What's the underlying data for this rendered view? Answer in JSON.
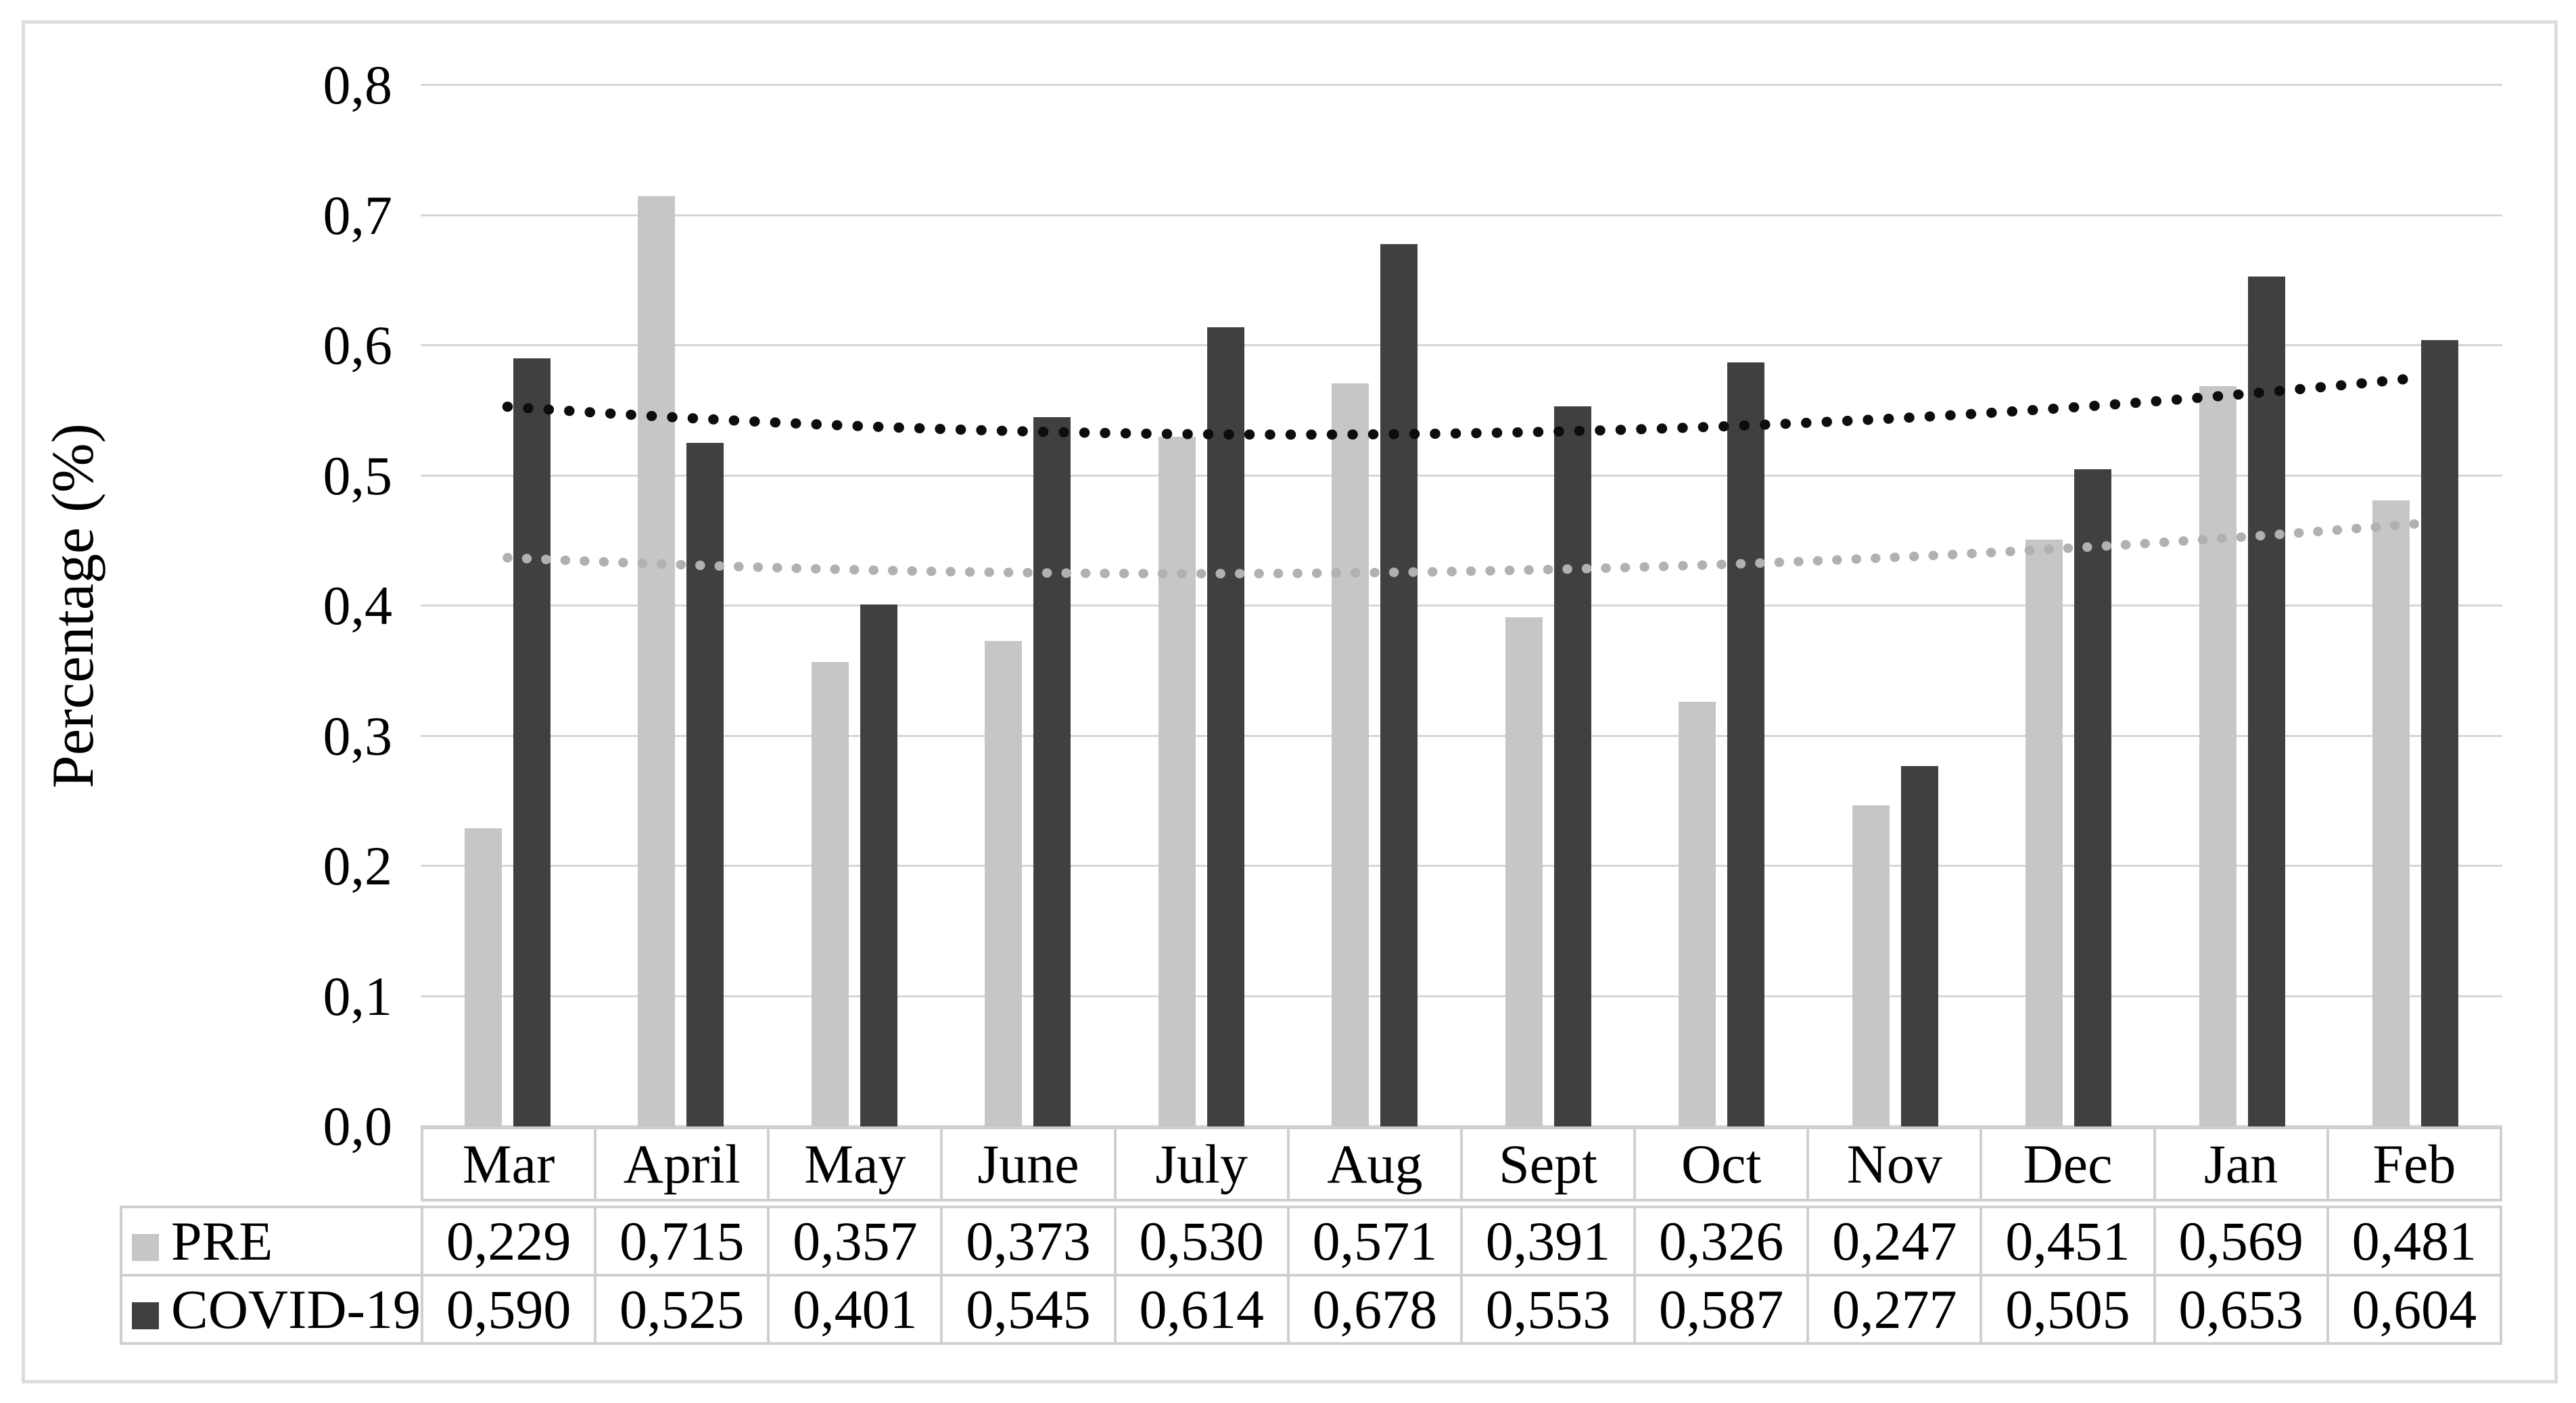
{
  "chart_data": {
    "type": "bar",
    "title": "",
    "xlabel": "",
    "ylabel": "Percentage (%)",
    "ylim": [
      0,
      0.8
    ],
    "ytick_step": 0.1,
    "ytick_labels": [
      "0,0",
      "0,1",
      "0,2",
      "0,3",
      "0,4",
      "0,5",
      "0,6",
      "0,7",
      "0,8"
    ],
    "decimal_separator": ",",
    "grid": true,
    "legend_position": "table-row-labels",
    "categories": [
      "Mar",
      "April",
      "May",
      "June",
      "July",
      "Aug",
      "Sept",
      "Oct",
      "Nov",
      "Dec",
      "Jan",
      "Feb"
    ],
    "series": [
      {
        "name": "PRE",
        "color": "#c6c6c6",
        "values": [
          0.229,
          0.715,
          0.357,
          0.373,
          0.53,
          0.571,
          0.391,
          0.326,
          0.247,
          0.451,
          0.569,
          0.481
        ],
        "values_display": [
          "0,229",
          "0,715",
          "0,357",
          "0,373",
          "0,530",
          "0,571",
          "0,391",
          "0,326",
          "0,247",
          "0,451",
          "0,569",
          "0,481"
        ]
      },
      {
        "name": "COVID-19",
        "color": "#404040",
        "values": [
          0.59,
          0.525,
          0.401,
          0.545,
          0.614,
          0.678,
          0.553,
          0.587,
          0.277,
          0.505,
          0.653,
          0.604
        ],
        "values_display": [
          "0,590",
          "0,525",
          "0,401",
          "0,545",
          "0,614",
          "0,678",
          "0,553",
          "0,587",
          "0,277",
          "0,505",
          "0,653",
          "0,604"
        ]
      }
    ],
    "trendlines": [
      {
        "for_series": "PRE",
        "style": "dotted",
        "color": "#b1b1b1",
        "dot_size": 14,
        "start": 0.437,
        "mid": 0.4265,
        "end": 0.463
      },
      {
        "for_series": "COVID-19",
        "style": "dotted",
        "color": "#0d0d0d",
        "dot_size": 15,
        "start": 0.553,
        "mid": 0.5325,
        "end": 0.575
      }
    ]
  },
  "colors": {
    "background": "#ffffff",
    "outer_frame": "#dcdcdc",
    "gridline": "#d6d6d6",
    "table_border": "#cfcfcf",
    "text": "#000000"
  }
}
